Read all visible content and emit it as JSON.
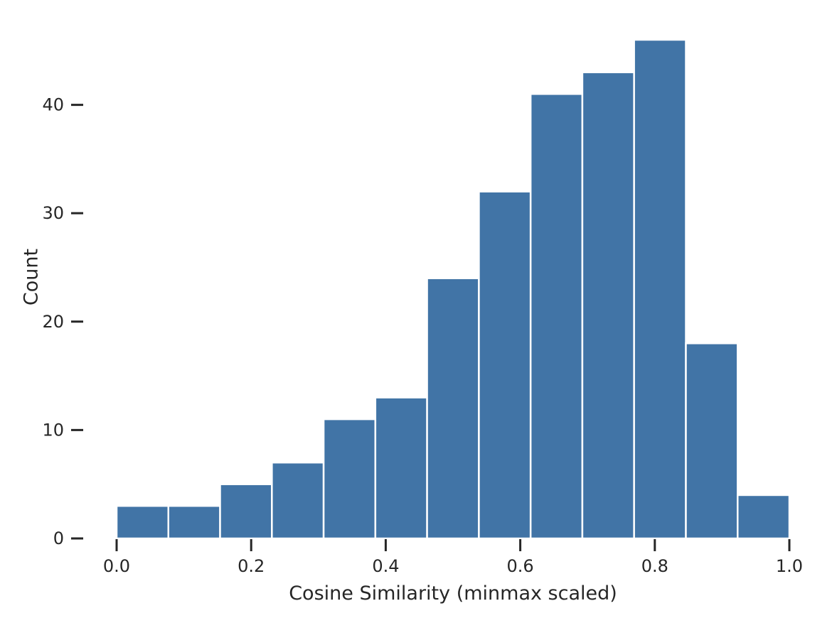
{
  "chart_data": {
    "type": "bar",
    "bin_edges": [
      0.0,
      0.0769,
      0.1538,
      0.2308,
      0.3077,
      0.3846,
      0.4615,
      0.5385,
      0.6154,
      0.6923,
      0.7692,
      0.8462,
      0.9231,
      1.0
    ],
    "values": [
      3,
      3,
      5,
      7,
      11,
      13,
      24,
      32,
      41,
      43,
      46,
      18,
      4
    ],
    "xlabel": "Cosine Similarity (minmax scaled)",
    "ylabel": "Count",
    "xlim": [
      0.0,
      1.0
    ],
    "ylim": [
      0,
      46
    ],
    "x_ticks": [
      "0.0",
      "0.2",
      "0.4",
      "0.6",
      "0.8",
      "1.0"
    ],
    "y_ticks": [
      "0",
      "10",
      "20",
      "30",
      "40"
    ],
    "bar_color": "#4174a6",
    "grid": false
  }
}
